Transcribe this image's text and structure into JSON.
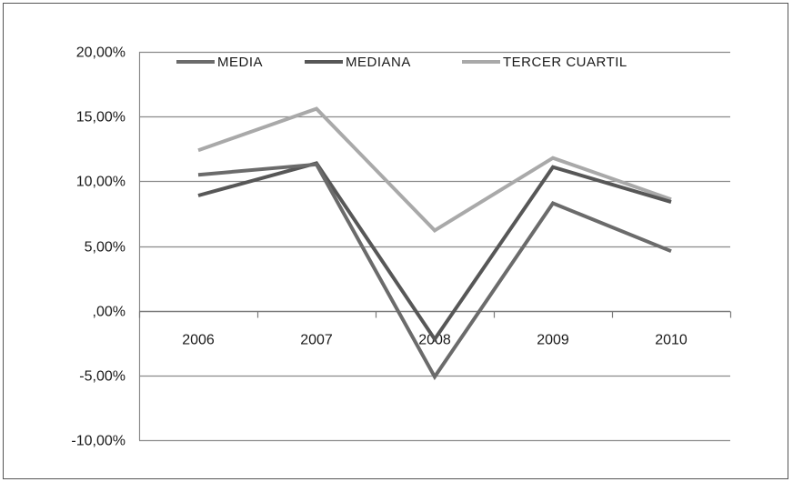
{
  "chart_data": {
    "type": "line",
    "title": "",
    "xlabel": "",
    "ylabel": "",
    "categories": [
      "2006",
      "2007",
      "2008",
      "2009",
      "2010"
    ],
    "ylim": [
      -10,
      20
    ],
    "y_ticks": [
      20,
      15,
      10,
      5,
      0,
      -5,
      -10
    ],
    "y_tick_labels": [
      "20,00%",
      "15,00%",
      "10,00%",
      "5,00%",
      ",00%",
      "-5,00%",
      "-10,00%"
    ],
    "grid": true,
    "legend_position": "top",
    "series": [
      {
        "name": "MEDIA",
        "color": "#6b6b6b",
        "values": [
          10.5,
          11.3,
          -5.1,
          8.3,
          4.6
        ]
      },
      {
        "name": "MEDIANA",
        "color": "#575757",
        "values": [
          8.9,
          11.4,
          -2.2,
          11.1,
          8.4
        ]
      },
      {
        "name": "TERCER CUARTIL",
        "color": "#a9a9a9",
        "values": [
          12.4,
          15.6,
          6.2,
          11.8,
          8.6
        ]
      }
    ]
  }
}
